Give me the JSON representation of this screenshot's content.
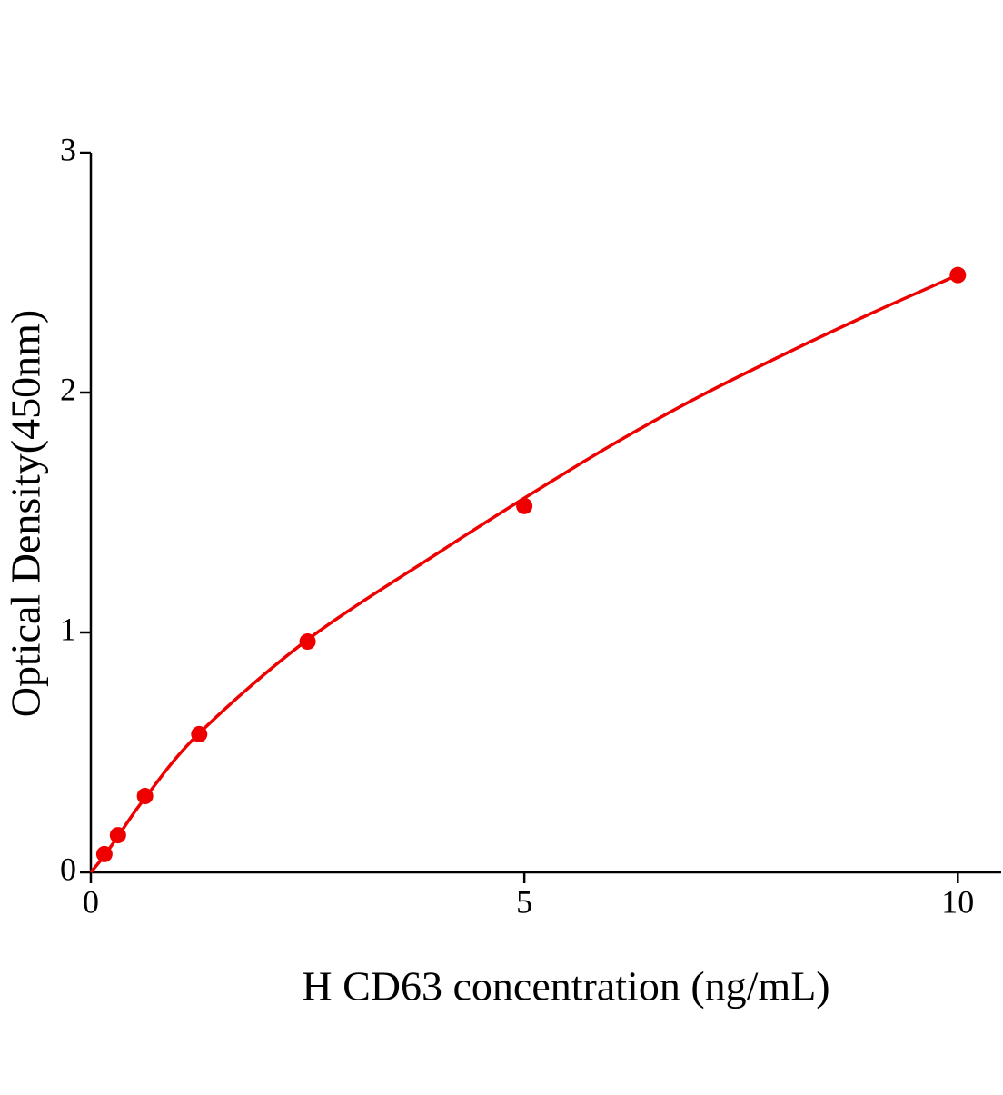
{
  "chart_data": {
    "type": "scatter",
    "x_label": "H CD63 concentration (ng/mL)",
    "y_label": "Optical Density(450nm)",
    "xlim": [
      0,
      10.5
    ],
    "ylim": [
      0,
      3
    ],
    "xticks": [
      0,
      5,
      10
    ],
    "yticks": [
      0,
      1,
      2,
      3
    ],
    "grid": false,
    "series": [
      {
        "type": "scatter",
        "color": "#ee0000",
        "x": [
          0.156,
          0.3125,
          0.625,
          1.25,
          2.5,
          5,
          10
        ],
        "values": [
          0.076,
          0.155,
          0.318,
          0.576,
          0.962,
          1.527,
          2.49
        ]
      },
      {
        "type": "line",
        "color": "#ee0000",
        "x": [
          0,
          0.156,
          0.3125,
          0.625,
          1.25,
          2.5,
          4,
          5,
          6,
          7,
          8,
          9,
          10
        ],
        "values": [
          0,
          0.07,
          0.15,
          0.31,
          0.58,
          0.97,
          1.33,
          1.56,
          1.78,
          1.98,
          2.16,
          2.33,
          2.49
        ]
      }
    ]
  }
}
